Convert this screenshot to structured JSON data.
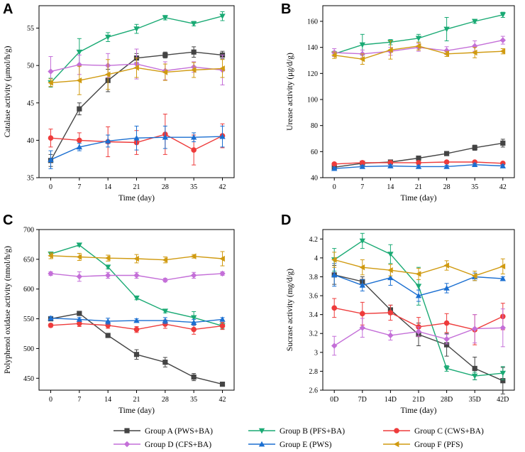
{
  "panel_letters": [
    "A",
    "B",
    "C",
    "D"
  ],
  "series_styles": [
    {
      "name": "Group A (PWS+BA)",
      "color": "#444444",
      "marker": "square"
    },
    {
      "name": "Group B (PFS+BA)",
      "color": "#1aaa74",
      "marker": "triangle-down"
    },
    {
      "name": "Group C (CWS+BA)",
      "color": "#ee3b3b",
      "marker": "circle"
    },
    {
      "name": "Group D (CFS+BA)",
      "color": "#c46fd8",
      "marker": "diamond"
    },
    {
      "name": "Group E (PWS)",
      "color": "#1b6fd1",
      "marker": "triangle-up"
    },
    {
      "name": "Group F (PFS)",
      "color": "#d09a10",
      "marker": "triangle-left"
    }
  ],
  "legend": {
    "entries": [
      "Group A (PWS+BA)",
      "Group B (PFS+BA)",
      "Group C (CWS+BA)",
      "Group D (CFS+BA)",
      "Group E (PWS)",
      "Group F (PFS)"
    ]
  },
  "chart_data": [
    {
      "type": "line",
      "panel": "A",
      "ylabel": "Catalase activity (μmol/h/g)",
      "xlabel": "Time (day)",
      "categories": [
        "0",
        "7",
        "14",
        "21",
        "28",
        "35",
        "42"
      ],
      "ylim": [
        35,
        58
      ],
      "yticks": [
        35,
        40,
        45,
        50,
        55
      ],
      "series": [
        {
          "name": "Group A (PWS+BA)",
          "values": [
            37.3,
            44.2,
            48.0,
            51.0,
            51.4,
            51.8,
            51.4
          ],
          "errors": [
            0.8,
            0.8,
            1.5,
            0.6,
            0.4,
            0.7,
            0.5
          ]
        },
        {
          "name": "Group B (PFS+BA)",
          "values": [
            47.7,
            51.8,
            53.8,
            54.9,
            56.4,
            55.6,
            56.6
          ],
          "errors": [
            0.6,
            1.8,
            0.6,
            0.6,
            0.3,
            0.3,
            0.6
          ]
        },
        {
          "name": "Group C (CWS+BA)",
          "values": [
            40.3,
            40.0,
            39.8,
            39.7,
            40.8,
            38.7,
            40.6
          ],
          "errors": [
            1.2,
            1.0,
            2.0,
            1.6,
            2.7,
            2.0,
            1.6
          ]
        },
        {
          "name": "Group D (CFS+BA)",
          "values": [
            49.2,
            50.1,
            50.0,
            50.2,
            49.3,
            49.8,
            49.4
          ],
          "errors": [
            2.0,
            1.3,
            1.6,
            2.0,
            1.2,
            0.7,
            2.0
          ]
        },
        {
          "name": "Group E (PWS)",
          "values": [
            37.4,
            39.1,
            39.9,
            40.3,
            40.4,
            40.4,
            40.5
          ],
          "errors": [
            1.2,
            0.5,
            0.8,
            1.6,
            1.5,
            0.6,
            1.4
          ]
        },
        {
          "name": "Group F (PFS)",
          "values": [
            47.7,
            48.0,
            48.8,
            49.7,
            49.1,
            49.4,
            49.6
          ],
          "errors": [
            0.5,
            1.9,
            2.0,
            1.3,
            1.1,
            1.0,
            1.2
          ]
        }
      ]
    },
    {
      "type": "line",
      "panel": "B",
      "ylabel": "Urease activity (μg/d/g)",
      "xlabel": "Time (day)",
      "categories": [
        "0",
        "7",
        "14",
        "21",
        "28",
        "35",
        "42"
      ],
      "ylim": [
        40,
        172
      ],
      "yticks": [
        40,
        60,
        80,
        100,
        120,
        140,
        160
      ],
      "series": [
        {
          "name": "Group A (PWS+BA)",
          "values": [
            48.0,
            51.0,
            52.0,
            55.0,
            58.5,
            63.0,
            66.5
          ],
          "errors": [
            1.0,
            1.0,
            1.0,
            1.5,
            1.0,
            2.0,
            3.0
          ]
        },
        {
          "name": "Group B (PFS+BA)",
          "values": [
            135.0,
            142.0,
            144.0,
            147.0,
            154.0,
            160.0,
            165.0
          ],
          "errors": [
            2.0,
            8.0,
            2.0,
            3.0,
            9.0,
            1.5,
            2.0
          ]
        },
        {
          "name": "Group C (CWS+BA)",
          "values": [
            50.5,
            51.5,
            51.5,
            51.5,
            52.0,
            52.0,
            51.0
          ],
          "errors": [
            1.0,
            1.0,
            1.5,
            1.0,
            1.0,
            1.0,
            1.0
          ]
        },
        {
          "name": "Group D (CFS+BA)",
          "values": [
            136.0,
            135.0,
            137.0,
            140.0,
            137.5,
            141.0,
            145.5
          ],
          "errors": [
            3.0,
            3.0,
            3.0,
            3.0,
            3.0,
            4.0,
            3.0
          ]
        },
        {
          "name": "Group E (PWS)",
          "values": [
            47.0,
            48.5,
            49.0,
            48.5,
            48.5,
            50.0,
            49.0
          ],
          "errors": [
            1.0,
            1.0,
            1.0,
            1.0,
            1.0,
            1.0,
            1.0
          ]
        },
        {
          "name": "Group F (PFS)",
          "values": [
            134.0,
            131.0,
            138.0,
            141.0,
            135.0,
            136.0,
            137.0
          ],
          "errors": [
            2.5,
            4.0,
            7.0,
            3.0,
            2.0,
            4.0,
            2.0
          ]
        }
      ]
    },
    {
      "type": "line",
      "panel": "C",
      "ylabel": "Polyphenol oxidase activity (nmol/h/g)",
      "xlabel": "Time (day)",
      "categories": [
        "0",
        "7",
        "14",
        "21",
        "28",
        "35",
        "42"
      ],
      "ylim": [
        430,
        700
      ],
      "yticks": [
        450,
        500,
        550,
        600,
        650,
        700
      ],
      "series": [
        {
          "name": "Group A (PWS+BA)",
          "values": [
            550,
            559,
            522,
            490,
            477,
            452,
            440
          ],
          "errors": [
            3,
            3,
            3,
            8,
            8,
            6,
            2
          ]
        },
        {
          "name": "Group B (PFS+BA)",
          "values": [
            659,
            674,
            637,
            585,
            563,
            552,
            538
          ],
          "errors": [
            3,
            2,
            3,
            3,
            3,
            10,
            5
          ]
        },
        {
          "name": "Group C (CWS+BA)",
          "values": [
            539,
            542,
            539,
            532,
            541,
            532,
            538
          ],
          "errors": [
            3,
            5,
            5,
            5,
            7,
            8,
            6
          ]
        },
        {
          "name": "Group D (CFS+BA)",
          "values": [
            626,
            621,
            623,
            623,
            615,
            623,
            626
          ],
          "errors": [
            3,
            8,
            5,
            5,
            3,
            5,
            3
          ]
        },
        {
          "name": "Group E (PWS)",
          "values": [
            551,
            549,
            546,
            547,
            547,
            544,
            549
          ],
          "errors": [
            3,
            3,
            5,
            3,
            5,
            5,
            3
          ]
        },
        {
          "name": "Group F (PFS)",
          "values": [
            656,
            654,
            652,
            651,
            649,
            655,
            651
          ],
          "errors": [
            5,
            6,
            5,
            7,
            5,
            3,
            12
          ]
        }
      ]
    },
    {
      "type": "line",
      "panel": "D",
      "ylabel": "Sucrase activity (mg/d/g)",
      "xlabel": "Time (day)",
      "categories": [
        "0D",
        "7D",
        "14D",
        "21D",
        "28D",
        "35D",
        "42D"
      ],
      "ylim": [
        2.6,
        4.3
      ],
      "yticks": [
        2.6,
        2.8,
        3.0,
        3.2,
        3.4,
        3.6,
        3.8,
        4.0,
        4.2
      ],
      "series": [
        {
          "name": "Group A (PWS+BA)",
          "values": [
            3.82,
            3.75,
            3.45,
            3.19,
            3.08,
            2.83,
            2.7
          ],
          "errors": [
            0.1,
            0.05,
            0.05,
            0.12,
            0.12,
            0.12,
            0.14
          ]
        },
        {
          "name": "Group B (PFS+BA)",
          "values": [
            3.98,
            4.18,
            4.04,
            3.7,
            2.83,
            2.75,
            2.78
          ],
          "errors": [
            0.12,
            0.08,
            0.1,
            0.2,
            0.03,
            0.04,
            0.07
          ]
        },
        {
          "name": "Group C (CWS+BA)",
          "values": [
            3.47,
            3.41,
            3.42,
            3.27,
            3.31,
            3.24,
            3.38
          ],
          "errors": [
            0.1,
            0.12,
            0.08,
            0.1,
            0.1,
            0.16,
            0.14
          ]
        },
        {
          "name": "Group D (CFS+BA)",
          "values": [
            3.07,
            3.26,
            3.18,
            3.22,
            3.14,
            3.25,
            3.26
          ],
          "errors": [
            0.1,
            0.1,
            0.05,
            0.05,
            0.05,
            0.15,
            0.2
          ]
        },
        {
          "name": "Group E (PWS)",
          "values": [
            3.82,
            3.71,
            3.79,
            3.6,
            3.68,
            3.8,
            3.78
          ],
          "errors": [
            0.12,
            0.06,
            0.08,
            0.06,
            0.05,
            0.04,
            0.02
          ]
        },
        {
          "name": "Group F (PFS)",
          "values": [
            3.98,
            3.9,
            3.87,
            3.83,
            3.92,
            3.81,
            3.91
          ],
          "errors": [
            0.08,
            0.08,
            0.06,
            0.06,
            0.05,
            0.05,
            0.08
          ]
        }
      ]
    }
  ]
}
